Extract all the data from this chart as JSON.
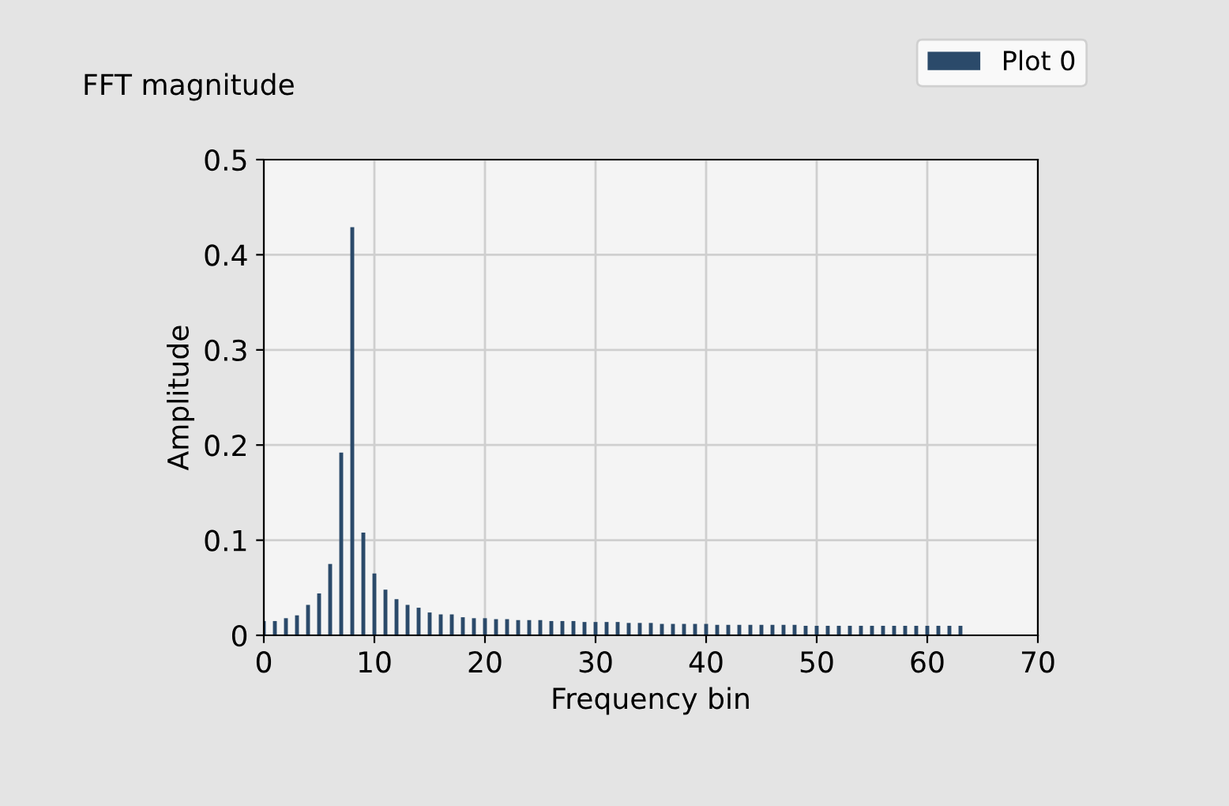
{
  "chart_data": {
    "type": "bar",
    "title": "FFT magnitude",
    "xlabel": "Frequency bin",
    "ylabel": "Amplitude",
    "x": [
      0,
      1,
      2,
      3,
      4,
      5,
      6,
      7,
      8,
      9,
      10,
      11,
      12,
      13,
      14,
      15,
      16,
      17,
      18,
      19,
      20,
      21,
      22,
      23,
      24,
      25,
      26,
      27,
      28,
      29,
      30,
      31,
      32,
      33,
      34,
      35,
      36,
      37,
      38,
      39,
      40,
      41,
      42,
      43,
      44,
      45,
      46,
      47,
      48,
      49,
      50,
      51,
      52,
      53,
      54,
      55,
      56,
      57,
      58,
      59,
      60,
      61,
      62,
      63
    ],
    "series": [
      {
        "name": "Plot 0",
        "color": "#2b4a6a",
        "values": [
          0.015,
          0.015,
          0.018,
          0.021,
          0.032,
          0.044,
          0.075,
          0.192,
          0.429,
          0.108,
          0.065,
          0.048,
          0.038,
          0.032,
          0.029,
          0.024,
          0.022,
          0.022,
          0.019,
          0.018,
          0.018,
          0.017,
          0.017,
          0.016,
          0.016,
          0.016,
          0.015,
          0.015,
          0.015,
          0.014,
          0.014,
          0.014,
          0.014,
          0.013,
          0.013,
          0.013,
          0.012,
          0.012,
          0.012,
          0.012,
          0.012,
          0.011,
          0.011,
          0.011,
          0.011,
          0.011,
          0.011,
          0.011,
          0.011,
          0.01,
          0.01,
          0.01,
          0.01,
          0.01,
          0.01,
          0.01,
          0.01,
          0.01,
          0.01,
          0.01,
          0.01,
          0.01,
          0.01,
          0.01
        ]
      }
    ],
    "xlim": [
      0,
      70
    ],
    "xticks": [
      0,
      10,
      20,
      30,
      40,
      50,
      60,
      70
    ],
    "ylim": [
      0,
      0.5
    ],
    "yticks": [
      0,
      0.1,
      0.2,
      0.3,
      0.4,
      0.5
    ],
    "grid": true,
    "legend": "top right"
  }
}
